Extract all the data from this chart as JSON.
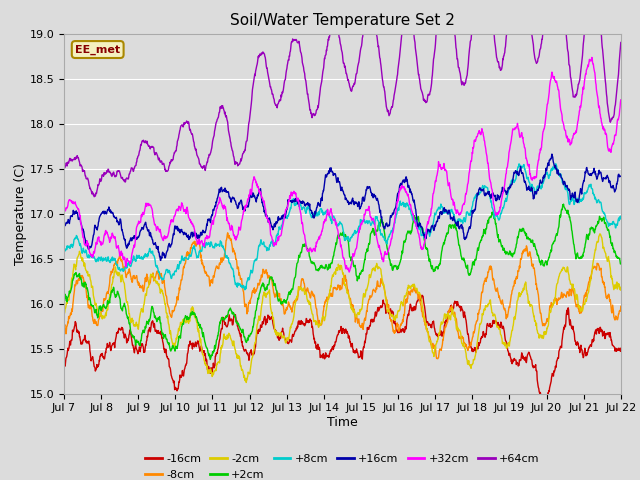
{
  "title": "Soil/Water Temperature Set 2",
  "xlabel": "Time",
  "ylabel": "Temperature (C)",
  "ylim": [
    15.0,
    19.0
  ],
  "xlim": [
    0,
    360
  ],
  "background_color": "#dcdcdc",
  "plot_bg_color": "#dcdcdc",
  "annotation_text": "EE_met",
  "annotation_bg": "#f5f0c0",
  "annotation_border": "#aa8800",
  "series_order": [
    "-16cm",
    "-8cm",
    "-2cm",
    "+2cm",
    "+8cm",
    "+16cm",
    "+32cm",
    "+64cm"
  ],
  "series_colors": {
    "-16cm": "#cc0000",
    "-8cm": "#ff8800",
    "-2cm": "#ddcc00",
    "+2cm": "#00cc00",
    "+8cm": "#00cccc",
    "+16cm": "#0000aa",
    "+32cm": "#ff00ff",
    "+64cm": "#9900bb"
  },
  "legend_order": [
    "-16cm",
    "-8cm",
    "-2cm",
    "+2cm",
    "+8cm",
    "+16cm",
    "+32cm",
    "+64cm"
  ],
  "xtick_labels": [
    "Jul 7",
    "Jul 8",
    "Jul 9",
    "Jul 10",
    "Jul 11",
    "Jul 12",
    "Jul 13",
    "Jul 14",
    "Jul 15",
    "Jul 16",
    "Jul 17",
    "Jul 18",
    "Jul 19",
    "Jul 20",
    "Jul 21",
    "Jul 22"
  ],
  "xtick_positions": [
    0,
    24,
    48,
    72,
    96,
    120,
    144,
    168,
    192,
    216,
    240,
    264,
    288,
    312,
    336,
    360
  ],
  "ytick_positions": [
    15.0,
    15.5,
    16.0,
    16.5,
    17.0,
    17.5,
    18.0,
    18.5,
    19.0
  ],
  "n_points": 1440
}
